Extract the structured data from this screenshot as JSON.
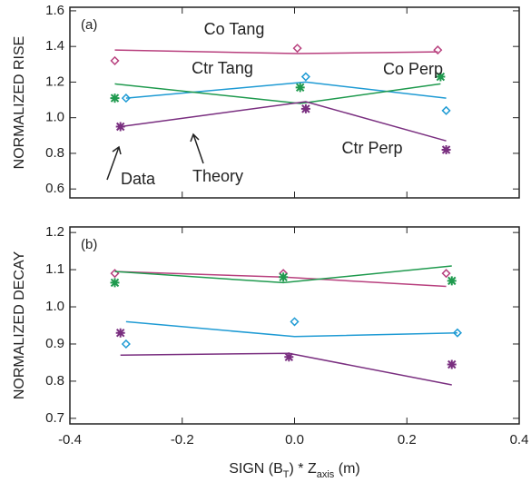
{
  "chart_data": [
    {
      "type": "line",
      "panel_label": "(a)",
      "ylabel": "NORMALIZED RISE",
      "xlim": [
        -0.4,
        0.4
      ],
      "xticks": [
        -0.4,
        -0.2,
        0,
        0.2,
        0.4
      ],
      "ylim": [
        0.55,
        1.62
      ],
      "yticks": [
        0.6,
        0.8,
        {
          "value": 1,
          "label": "1.0"
        },
        1.2,
        1.4,
        1.6
      ],
      "annotations": [
        "Data",
        "Theory"
      ],
      "series": [
        {
          "name": "Co Tang",
          "color": "#b8407e",
          "marker": "diamond",
          "x": [
            -0.32,
            0.005,
            0.255
          ],
          "values": [
            1.32,
            1.39,
            1.38
          ],
          "theory": [
            1.38,
            1.36,
            1.37
          ]
        },
        {
          "name": "Ctr Tang",
          "color": "#1f9bd4",
          "marker": "diamond",
          "x": [
            -0.3,
            0.02,
            0.27
          ],
          "values": [
            1.11,
            1.23,
            1.04
          ],
          "theory": [
            1.11,
            1.2,
            1.11
          ]
        },
        {
          "name": "Co Perp",
          "color": "#1f9a4e",
          "marker": "asterisk",
          "x": [
            -0.32,
            0.01,
            0.26
          ],
          "values": [
            1.11,
            1.17,
            1.23
          ],
          "theory": [
            1.19,
            1.08,
            1.19
          ]
        },
        {
          "name": "Ctr Perp",
          "color": "#7a2f80",
          "marker": "asterisk",
          "x": [
            -0.31,
            0.02,
            0.27
          ],
          "values": [
            0.95,
            1.05,
            0.82
          ],
          "theory": [
            0.95,
            1.09,
            0.87
          ]
        }
      ]
    },
    {
      "type": "line",
      "panel_label": "(b)",
      "ylabel": "NORMALIZED DECAY",
      "xlabel_parts": [
        {
          "text": "SIGN (B"
        },
        {
          "text": "T",
          "sub": true
        },
        {
          "text": ") * Z"
        },
        {
          "text": "axis",
          "sub": true
        },
        {
          "text": " (m)"
        }
      ],
      "xlim": [
        -0.4,
        0.4
      ],
      "xticks": [
        {
          "value": -0.4,
          "label": "-0.4"
        },
        {
          "value": -0.2,
          "label": "-0.2"
        },
        {
          "value": 0,
          "label": "0.0"
        },
        {
          "value": 0.2,
          "label": "0.2"
        },
        {
          "value": 0.4,
          "label": "0.4"
        }
      ],
      "ylim": [
        0.685,
        1.215
      ],
      "yticks": [
        0.7,
        0.8,
        0.9,
        {
          "value": 1,
          "label": "1.0"
        },
        1.1,
        1.2
      ],
      "series": [
        {
          "color": "#b8407e",
          "marker": "diamond",
          "x": [
            -0.32,
            -0.02,
            0.27
          ],
          "values": [
            1.09,
            1.09,
            1.09
          ],
          "theory": [
            1.095,
            1.08,
            1.055
          ]
        },
        {
          "color": "#1f9bd4",
          "marker": "diamond",
          "x": [
            -0.3,
            0.0,
            0.29
          ],
          "values": [
            0.9,
            0.96,
            0.93
          ],
          "theory": [
            0.96,
            0.92,
            0.93
          ]
        },
        {
          "color": "#1f9a4e",
          "marker": "asterisk",
          "x": [
            -0.32,
            -0.02,
            0.28
          ],
          "values": [
            1.065,
            1.08,
            1.07
          ],
          "theory": [
            1.095,
            1.065,
            1.11
          ]
        },
        {
          "color": "#7a2f80",
          "marker": "asterisk",
          "x": [
            -0.31,
            -0.01,
            0.28
          ],
          "values": [
            0.93,
            0.865,
            0.845
          ],
          "theory": [
            0.87,
            0.875,
            0.79
          ]
        }
      ]
    }
  ]
}
